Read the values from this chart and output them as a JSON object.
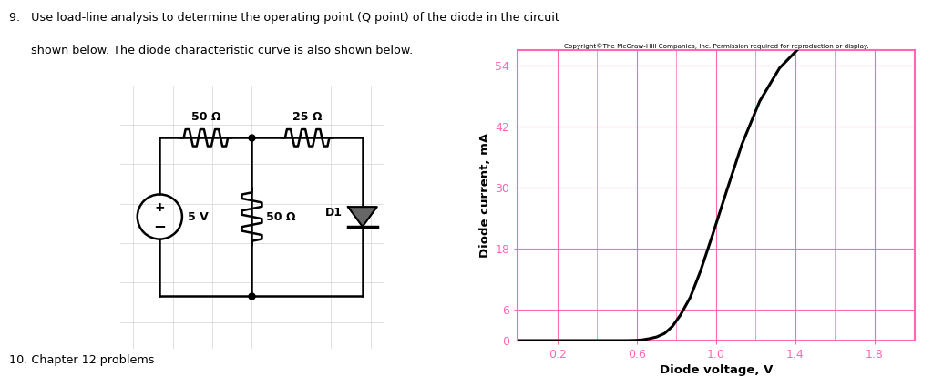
{
  "title_line1": "9.   Use load-line analysis to determine the operating point (Q point) of the diode in the circuit",
  "title_line2": "      shown below. The diode characteristic curve is also shown below.",
  "footer_text": "10. Chapter 12 problems",
  "copyright_text": "Copyright©The McGraw-Hill Companies, Inc. Permission required for reproduction or display.",
  "graph_xlabel": "Diode voltage, V",
  "graph_ylabel": "Diode current, mA",
  "graph_xticks": [
    0.2,
    0.6,
    1.0,
    1.4,
    1.8
  ],
  "graph_yticks": [
    0,
    6,
    18,
    30,
    42,
    54
  ],
  "graph_xlim": [
    0.0,
    2.0
  ],
  "graph_ylim": [
    0,
    57
  ],
  "grid_color": "#FF69B4",
  "tick_color": "#FF69B4",
  "curve_color": "#000000",
  "border_color": "#FF69B4",
  "diode_curve_x": [
    0.0,
    0.5,
    0.55,
    0.6,
    0.63,
    0.66,
    0.7,
    0.74,
    0.78,
    0.82,
    0.87,
    0.92,
    0.98,
    1.05,
    1.13,
    1.22,
    1.32,
    1.42,
    1.52
  ],
  "diode_curve_y": [
    0.0,
    0.0,
    0.0,
    0.05,
    0.15,
    0.35,
    0.7,
    1.4,
    2.8,
    5.0,
    8.5,
    13.5,
    20.5,
    29.0,
    38.5,
    47.0,
    53.5,
    57.5,
    60.0
  ],
  "bg_color": "#ffffff",
  "label_50_top": "50 Ω",
  "label_25_top": "25 Ω",
  "label_50_mid": "50 Ω",
  "label_5v": "5 V",
  "label_d1": "D1",
  "resistor_lw": 1.8,
  "circuit_lw": 1.8,
  "grid_lw_major": 0.8,
  "grid_lw_minor": 0.5
}
